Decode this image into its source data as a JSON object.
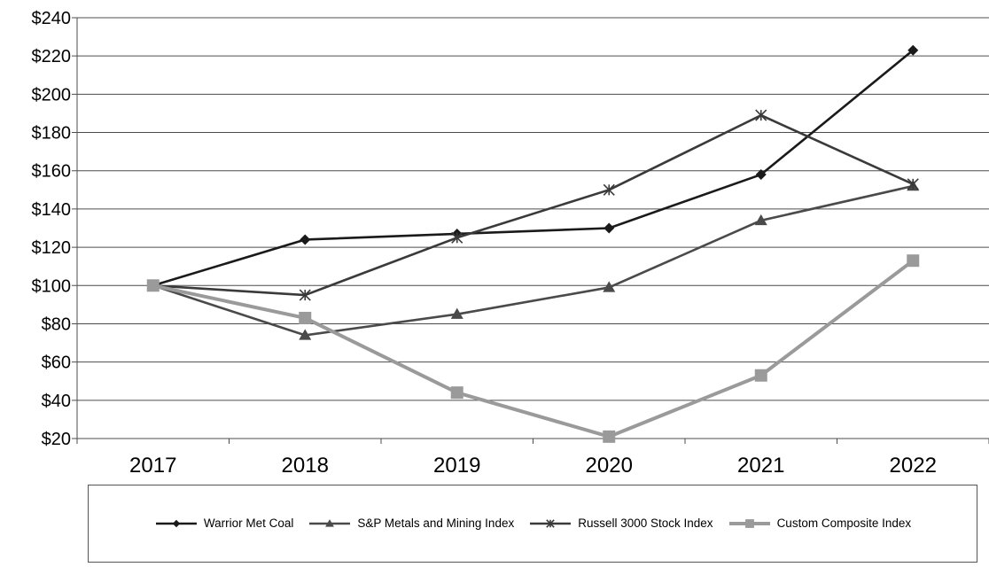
{
  "chart_data": {
    "type": "line",
    "categories": [
      "2017",
      "2018",
      "2019",
      "2020",
      "2021",
      "2022"
    ],
    "ylim": [
      20,
      240
    ],
    "yticks": [
      "$240",
      "$220",
      "$200",
      "$180",
      "$160",
      "$140",
      "$120",
      "$100",
      "$80",
      "$60",
      "$40",
      "$20"
    ],
    "grid": true,
    "legend_position": "bottom",
    "series": [
      {
        "name": "Warrior Met Coal",
        "values": [
          100,
          124,
          127,
          130,
          158,
          223
        ],
        "color": "#1a1a1a",
        "marker": "diamond"
      },
      {
        "name": "S&P Metals and Mining Index",
        "values": [
          100,
          74,
          85,
          99,
          134,
          152
        ],
        "color": "#4a4a4a",
        "marker": "triangle"
      },
      {
        "name": "Russell 3000 Stock Index",
        "values": [
          100,
          95,
          125,
          150,
          189,
          153
        ],
        "color": "#3a3a3a",
        "marker": "star"
      },
      {
        "name": "Custom Composite Index",
        "values": [
          100,
          83,
          44,
          21,
          53,
          113
        ],
        "color": "#9a9a9a",
        "marker": "square"
      }
    ]
  }
}
